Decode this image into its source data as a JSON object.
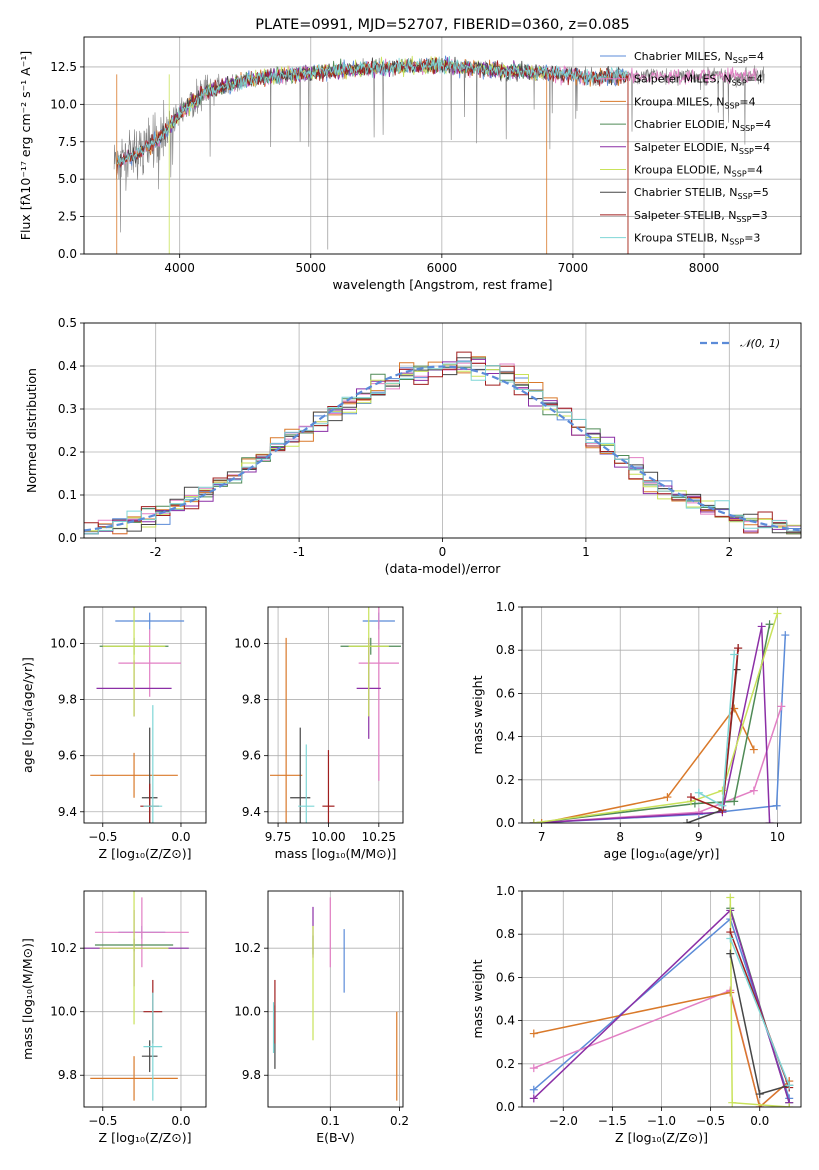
{
  "colors": {
    "Chabrier MILES": "#5b8bd8",
    "Salpeter MILES": "#e27fc4",
    "Kroupa MILES": "#d9792a",
    "Chabrier ELODIE": "#4f8a56",
    "Salpeter ELODIE": "#8b2fa6",
    "Kroupa ELODIE": "#c9e25a",
    "Chabrier STELIB": "#464646",
    "Salpeter STELIB": "#a01f1f",
    "Kroupa STELIB": "#7fd6d6"
  },
  "chart_data": [
    {
      "id": "spectrum",
      "type": "line",
      "title": "PLATE=0991, MJD=52707, FIBERID=0360, z=0.085",
      "xlabel": "wavelength [Angstrom, rest frame]",
      "ylabel": "Flux [fλ10⁻¹⁷ erg cm⁻² s⁻¹ A⁻¹]",
      "xlim": [
        3270,
        8740
      ],
      "ylim": [
        0,
        14.5
      ],
      "xticks": [
        4000,
        5000,
        6000,
        7000,
        8000
      ],
      "yticks": [
        0.0,
        2.5,
        5.0,
        7.5,
        10.0,
        12.5
      ],
      "legend": [
        {
          "name": "Chabrier MILES",
          "label": "Chabrier MILES, N",
          "sub": "SSP",
          "suffix": "=4"
        },
        {
          "name": "Salpeter MILES",
          "label": "Salpeter MILES, N",
          "sub": "SSP",
          "suffix": "=4"
        },
        {
          "name": "Kroupa MILES",
          "label": "Kroupa MILES, N",
          "sub": "SSP",
          "suffix": "=4"
        },
        {
          "name": "Chabrier ELODIE",
          "label": "Chabrier ELODIE, N",
          "sub": "SSP",
          "suffix": "=4"
        },
        {
          "name": "Salpeter ELODIE",
          "label": "Salpeter ELODIE, N",
          "sub": "SSP",
          "suffix": "=4"
        },
        {
          "name": "Kroupa ELODIE",
          "label": "Kroupa ELODIE, N",
          "sub": "SSP",
          "suffix": "=4"
        },
        {
          "name": "Chabrier STELIB",
          "label": "Chabrier STELIB, N",
          "sub": "SSP",
          "suffix": "=5"
        },
        {
          "name": "Salpeter STELIB",
          "label": "Salpeter STELIB, N",
          "sub": "SSP",
          "suffix": "=3"
        },
        {
          "name": "Kroupa STELIB",
          "label": "Kroupa STELIB, N",
          "sub": "SSP",
          "suffix": "=3"
        }
      ],
      "continuum": {
        "x": [
          3500,
          3700,
          3850,
          3950,
          4050,
          4200,
          4400,
          4700,
          5000,
          5300,
          5600,
          6000,
          6400,
          6800,
          7200,
          7400
        ],
        "y": [
          6.0,
          6.8,
          7.8,
          8.8,
          9.8,
          10.8,
          11.4,
          11.9,
          12.1,
          12.3,
          12.5,
          12.6,
          12.3,
          12.1,
          11.8,
          11.9
        ]
      }
    },
    {
      "id": "residuals",
      "type": "histogram",
      "xlabel": "(data-model)/error",
      "ylabel": "Normed distribution",
      "xlim": [
        -2.5,
        2.5
      ],
      "ylim": [
        0,
        0.5
      ],
      "xticks": [
        -2,
        -1,
        0,
        1,
        2
      ],
      "yticks": [
        0.0,
        0.1,
        0.2,
        0.3,
        0.4,
        0.5
      ],
      "legend_label": "𝒩(0, 1)",
      "bin_width": 0.1
    },
    {
      "id": "age-vs-Z",
      "type": "errorbar",
      "xlabel": "Z [log₁₀(Z/Z⊙)]",
      "ylabel": "age  [log₁₀(age/yr)]",
      "xlim": [
        -0.62,
        0.16
      ],
      "ylim": [
        9.36,
        10.13
      ],
      "xticks": [
        -0.5,
        0.0
      ],
      "xtick_labels": [
        "−0.5",
        "0.0"
      ],
      "yticks": [
        9.4,
        9.6,
        9.8,
        10.0
      ],
      "points": [
        {
          "name": "Chabrier MILES",
          "x": -0.2,
          "y": 10.08,
          "xerr": 0.22,
          "yerr": 0.03
        },
        {
          "name": "Salpeter MILES",
          "x": -0.2,
          "y": 9.93,
          "xerr": 0.2,
          "yerr": 0.12
        },
        {
          "name": "Kroupa MILES",
          "x": -0.3,
          "y": 9.53,
          "xerr": 0.28,
          "yerr": 0.08
        },
        {
          "name": "Chabrier ELODIE",
          "x": -0.3,
          "y": 9.99,
          "xerr": 0.22,
          "yerr": 0.03
        },
        {
          "name": "Salpeter ELODIE",
          "x": -0.3,
          "y": 9.84,
          "xerr": 0.24,
          "yerr": 0.1
        },
        {
          "name": "Kroupa ELODIE",
          "x": -0.3,
          "y": 9.99,
          "xerr": 0.2,
          "yerr": 0.25
        },
        {
          "name": "Chabrier STELIB",
          "x": -0.2,
          "y": 9.45,
          "xerr": 0.05,
          "yerr": 0.25
        },
        {
          "name": "Salpeter STELIB",
          "x": -0.2,
          "y": 9.42,
          "xerr": 0.06,
          "yerr": 0.08
        },
        {
          "name": "Kroupa STELIB",
          "x": -0.18,
          "y": 9.42,
          "xerr": 0.06,
          "yerr": 0.36
        }
      ]
    },
    {
      "id": "age-vs-mass",
      "type": "errorbar",
      "xlabel": "mass [log₁₀(M/M⊙)]",
      "xlim": [
        9.7,
        10.37
      ],
      "ylim": [
        9.36,
        10.13
      ],
      "xticks": [
        9.75,
        10.0,
        10.25
      ],
      "xtick_labels": [
        "9.75",
        "10.00",
        "10.25"
      ],
      "yticks": [
        9.4,
        9.6,
        9.8,
        10.0
      ],
      "points": [
        {
          "name": "Chabrier MILES",
          "x": 10.25,
          "y": 10.08,
          "xerr": 0.08,
          "yerr": 0.03
        },
        {
          "name": "Salpeter MILES",
          "x": 10.25,
          "y": 9.93,
          "xerr": 0.1,
          "yerr": 0.42
        },
        {
          "name": "Kroupa MILES",
          "x": 9.79,
          "y": 9.53,
          "xerr": 0.08,
          "yerr": 0.49
        },
        {
          "name": "Chabrier ELODIE",
          "x": 10.21,
          "y": 9.99,
          "xerr": 0.15,
          "yerr": 0.03
        },
        {
          "name": "Salpeter ELODIE",
          "x": 10.2,
          "y": 9.84,
          "xerr": 0.06,
          "yerr": 0.18
        },
        {
          "name": "Kroupa ELODIE",
          "x": 10.2,
          "y": 9.99,
          "xerr": 0.1,
          "yerr": 0.25
        },
        {
          "name": "Chabrier STELIB",
          "x": 9.86,
          "y": 9.45,
          "xerr": 0.05,
          "yerr": 0.25
        },
        {
          "name": "Salpeter STELIB",
          "x": 10.0,
          "y": 9.42,
          "xerr": 0.03,
          "yerr": 0.2
        },
        {
          "name": "Kroupa STELIB",
          "x": 9.89,
          "y": 9.42,
          "xerr": 0.04,
          "yerr": 0.22
        }
      ]
    },
    {
      "id": "weight-vs-age",
      "type": "line",
      "xlabel": "age  [log₁₀(age/yr)]",
      "ylabel": "mass weight",
      "xlim": [
        6.75,
        10.3
      ],
      "ylim": [
        0,
        1.0
      ],
      "xticks": [
        7,
        8,
        9,
        10
      ],
      "yticks": [
        0.0,
        0.2,
        0.4,
        0.6,
        0.8,
        1.0
      ],
      "series": [
        {
          "name": "Chabrier MILES",
          "x": [
            6.9,
            9.0,
            9.99,
            10.1
          ],
          "y": [
            0.0,
            0.04,
            0.08,
            0.87
          ]
        },
        {
          "name": "Salpeter MILES",
          "x": [
            6.9,
            9.0,
            9.7,
            10.05
          ],
          "y": [
            0.0,
            0.05,
            0.15,
            0.54
          ]
        },
        {
          "name": "Kroupa MILES",
          "x": [
            7.0,
            8.6,
            9.45,
            9.7
          ],
          "y": [
            0.0,
            0.12,
            0.53,
            0.34
          ]
        },
        {
          "name": "Chabrier ELODIE",
          "x": [
            6.9,
            8.95,
            9.45,
            9.9
          ],
          "y": [
            0.0,
            0.09,
            0.1,
            0.92
          ]
        },
        {
          "name": "Salpeter ELODIE",
          "x": [
            6.9,
            9.3,
            9.8,
            9.9
          ],
          "y": [
            0.0,
            0.05,
            0.91,
            0.0
          ]
        },
        {
          "name": "Kroupa ELODIE",
          "x": [
            6.9,
            8.9,
            9.3,
            10.0
          ],
          "y": [
            0.0,
            0.1,
            0.15,
            0.97
          ]
        },
        {
          "name": "Chabrier STELIB",
          "x": [
            8.85,
            9.3,
            9.48,
            9.5
          ],
          "y": [
            0.0,
            0.06,
            0.71,
            0.81
          ]
        },
        {
          "name": "Salpeter STELIB",
          "x": [
            8.9,
            9.3,
            9.5
          ],
          "y": [
            0.12,
            0.06,
            0.81
          ]
        },
        {
          "name": "Kroupa STELIB",
          "x": [
            9.0,
            9.3,
            9.45
          ],
          "y": [
            0.14,
            0.08,
            0.78
          ]
        }
      ]
    },
    {
      "id": "mass-vs-Z",
      "type": "errorbar",
      "xlabel": "Z [log₁₀(Z/Z⊙)]",
      "ylabel": "mass [log₁₀(M/M⊙)]",
      "xlim": [
        -0.62,
        0.16
      ],
      "ylim": [
        9.7,
        10.38
      ],
      "xticks": [
        -0.5,
        0.0
      ],
      "xtick_labels": [
        "−0.5",
        "0.0"
      ],
      "yticks": [
        9.8,
        10.0,
        10.2
      ],
      "points": [
        {
          "name": "Chabrier MILES",
          "x": -0.25,
          "y": 10.25,
          "xerr": 0.15,
          "yerr": 0.02
        },
        {
          "name": "Salpeter MILES",
          "x": -0.25,
          "y": 10.25,
          "xerr": 0.3,
          "yerr": 0.11
        },
        {
          "name": "Kroupa MILES",
          "x": -0.3,
          "y": 9.79,
          "xerr": 0.28,
          "yerr": 0.07
        },
        {
          "name": "Chabrier ELODIE",
          "x": -0.3,
          "y": 10.21,
          "xerr": 0.25,
          "yerr": 0.02
        },
        {
          "name": "Salpeter ELODIE",
          "x": -0.3,
          "y": 10.2,
          "xerr": 0.35,
          "yerr": 0.12
        },
        {
          "name": "Kroupa ELODIE",
          "x": -0.3,
          "y": 10.2,
          "xerr": 0.22,
          "yerr": 0.24
        },
        {
          "name": "Chabrier STELIB",
          "x": -0.2,
          "y": 9.86,
          "xerr": 0.05,
          "yerr": 0.05
        },
        {
          "name": "Salpeter STELIB",
          "x": -0.18,
          "y": 10.0,
          "xerr": 0.06,
          "yerr": 0.1
        },
        {
          "name": "Kroupa STELIB",
          "x": -0.18,
          "y": 9.89,
          "xerr": 0.06,
          "yerr": 0.17
        }
      ]
    },
    {
      "id": "mass-vs-EBV",
      "type": "errorbar",
      "xlabel": "E(B-V)",
      "xlim": [
        0.01,
        0.205
      ],
      "ylim": [
        9.7,
        10.38
      ],
      "xticks": [
        0.1,
        0.2
      ],
      "xtick_labels": [
        "0.1",
        "0.2"
      ],
      "yticks": [
        9.8,
        10.0,
        10.2
      ],
      "points": [
        {
          "name": "Chabrier MILES",
          "x": 0.12,
          "y": 10.16,
          "yerr": 0.1
        },
        {
          "name": "Salpeter MILES",
          "x": 0.1,
          "y": 10.25,
          "yerr": 0.11
        },
        {
          "name": "Kroupa MILES",
          "x": 0.196,
          "y": 9.86,
          "yerr": 0.14
        },
        {
          "name": "Chabrier ELODIE",
          "x": 0.075,
          "y": 10.21,
          "yerr": 0.03
        },
        {
          "name": "Salpeter ELODIE",
          "x": 0.075,
          "y": 10.25,
          "yerr": 0.08
        },
        {
          "name": "Kroupa ELODIE",
          "x": 0.075,
          "y": 10.09,
          "yerr": 0.18
        },
        {
          "name": "Chabrier STELIB",
          "x": 0.02,
          "y": 9.92,
          "yerr": 0.1
        },
        {
          "name": "Salpeter STELIB",
          "x": 0.02,
          "y": 10.0,
          "yerr": 0.1
        },
        {
          "name": "Kroupa STELIB",
          "x": 0.018,
          "y": 9.95,
          "yerr": 0.08
        }
      ]
    },
    {
      "id": "weight-vs-Z",
      "type": "line",
      "xlabel": "Z [log₁₀(Z/Z⊙)]",
      "ylabel": "mass weight",
      "xlim": [
        -2.42,
        0.42
      ],
      "ylim": [
        0,
        1.0
      ],
      "xticks": [
        -2.0,
        -1.5,
        -1.0,
        -0.5,
        0.0
      ],
      "xtick_labels": [
        "−2.0",
        "−1.5",
        "−1.0",
        "−0.5",
        "0.0"
      ],
      "yticks": [
        0.0,
        0.2,
        0.4,
        0.6,
        0.8,
        1.0
      ],
      "series": [
        {
          "name": "Chabrier MILES",
          "x": [
            -2.3,
            -0.3,
            0.3
          ],
          "y": [
            0.08,
            0.87,
            0.04
          ]
        },
        {
          "name": "Salpeter MILES",
          "x": [
            -2.3,
            -0.3,
            0.0,
            0.3
          ],
          "y": [
            0.18,
            0.54,
            0.0,
            0.12
          ]
        },
        {
          "name": "Kroupa MILES",
          "x": [
            -2.3,
            -0.3,
            0.0,
            0.3
          ],
          "y": [
            0.34,
            0.53,
            0.0,
            0.12
          ]
        },
        {
          "name": "Chabrier ELODIE",
          "x": [
            -0.3,
            0.3
          ],
          "y": [
            0.92,
            0.02
          ]
        },
        {
          "name": "Salpeter ELODIE",
          "x": [
            -2.3,
            -0.3,
            0.3
          ],
          "y": [
            0.04,
            0.91,
            0.02
          ]
        },
        {
          "name": "Kroupa ELODIE",
          "x": [
            -0.3,
            -0.28,
            0.3
          ],
          "y": [
            0.97,
            0.02,
            0.0
          ]
        },
        {
          "name": "Chabrier STELIB",
          "x": [
            -0.3,
            0.0,
            0.3
          ],
          "y": [
            0.71,
            0.06,
            0.1
          ]
        },
        {
          "name": "Salpeter STELIB",
          "x": [
            -0.3,
            0.3
          ],
          "y": [
            0.81,
            0.09
          ]
        },
        {
          "name": "Kroupa STELIB",
          "x": [
            -0.3,
            0.3
          ],
          "y": [
            0.78,
            0.1
          ]
        }
      ]
    }
  ]
}
